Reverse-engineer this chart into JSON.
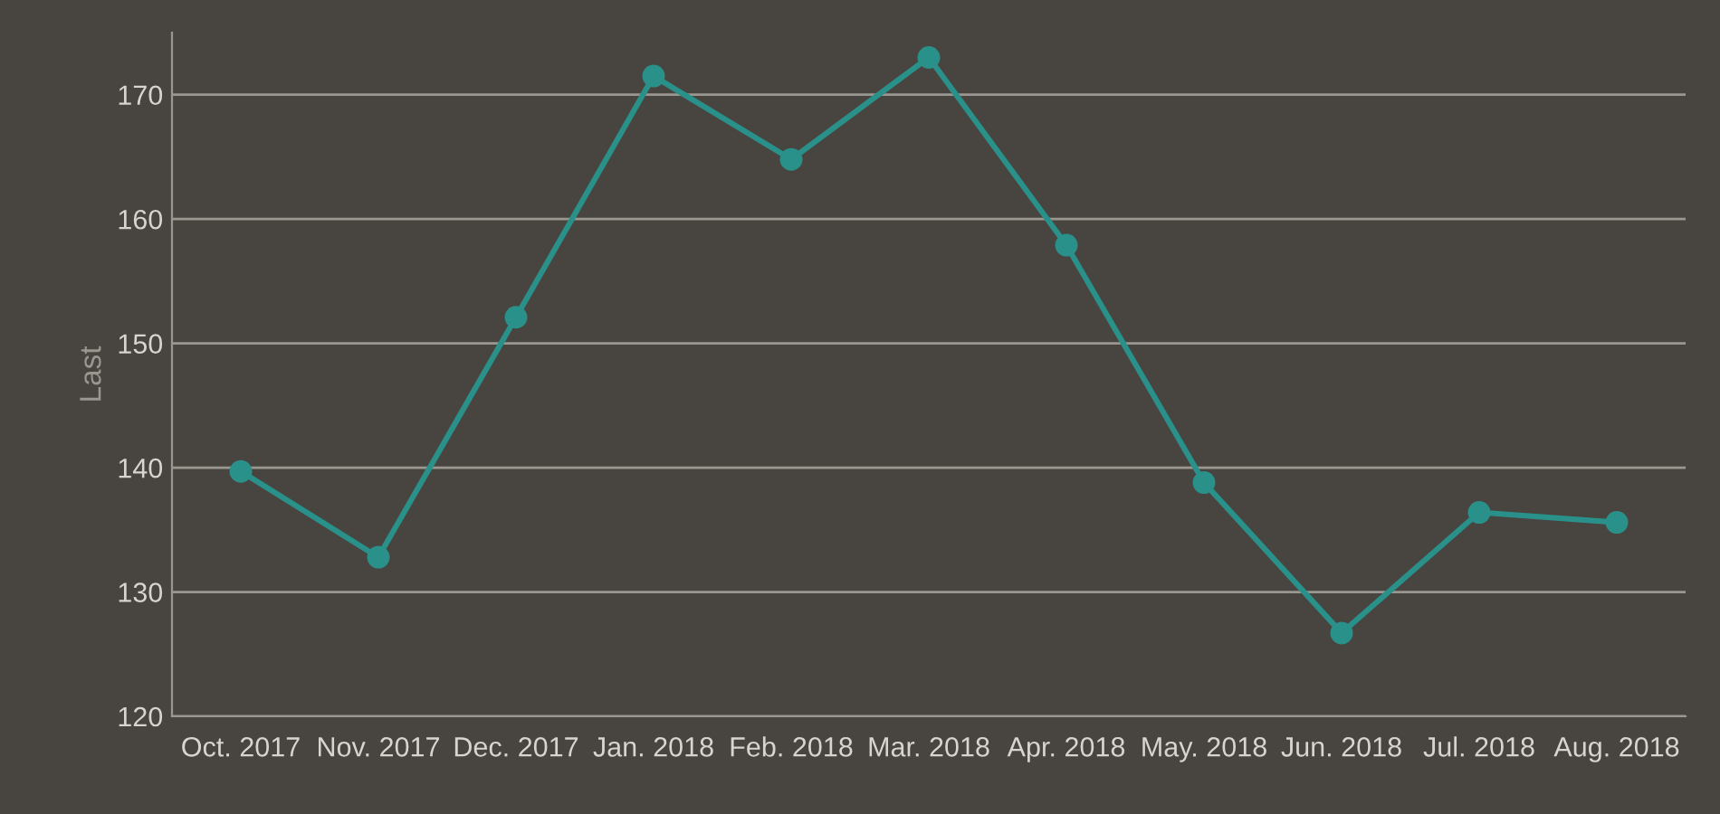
{
  "chart_data": {
    "type": "line",
    "ylabel": "Last",
    "categories": [
      "Oct. 2017",
      "Nov. 2017",
      "Dec. 2017",
      "Jan. 2018",
      "Feb. 2018",
      "Mar. 2018",
      "Apr. 2018",
      "May. 2018",
      "Jun. 2018",
      "Jul. 2018",
      "Aug. 2018"
    ],
    "series": [
      {
        "color": "#2a908a",
        "values": [
          139.7,
          132.8,
          152.1,
          171.5,
          164.8,
          173,
          157.9,
          138.8,
          126.7,
          136.4,
          135.6
        ]
      }
    ],
    "ylim": [
      120,
      175
    ],
    "yticks": [
      120,
      130,
      140,
      150,
      160,
      170
    ],
    "grid": "y",
    "marker": "circle",
    "line_style": "solid",
    "legend": false
  }
}
